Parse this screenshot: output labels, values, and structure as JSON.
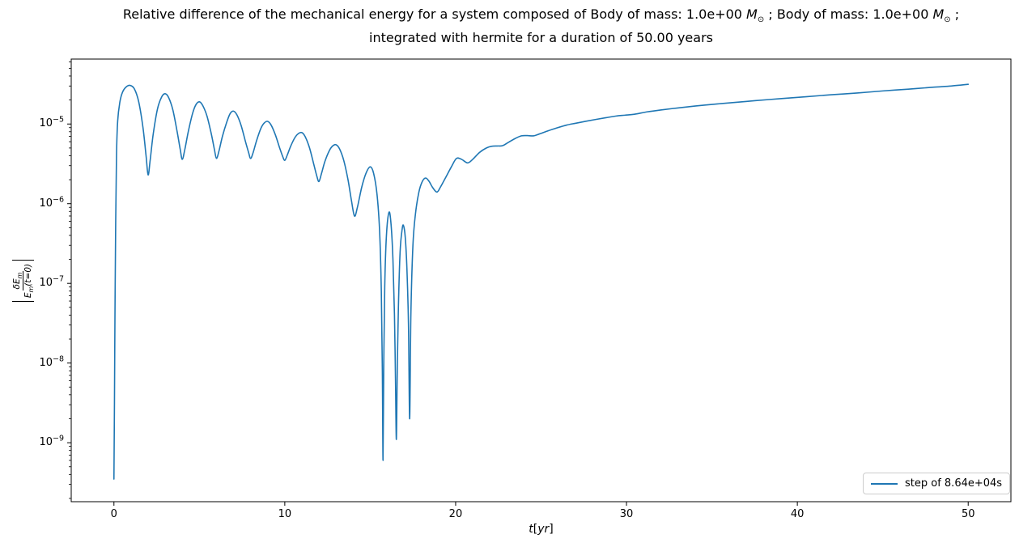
{
  "title": {
    "line1_a": "Relative difference of the mechanical energy for a system composed of Body of mass: 1.0e+00 ",
    "msun": "M",
    "msun_sub": "⊙",
    "line1_b": " ; Body of mass: 1.0e+00 ",
    "line1_c": " ;",
    "line2": "integrated with hermite for a duration of 50.00 years"
  },
  "xlabel": {
    "var": "t",
    "open": "[",
    "unit": "yr",
    "close": "]"
  },
  "ylabel": {
    "num_main": "δE",
    "num_sub": "m",
    "den_main": "E",
    "den_sub": "m",
    "den_tail": "(t=0)"
  },
  "legend": {
    "label": "step of 8.64e+04s",
    "position": "lower right"
  },
  "colors": {
    "line": "#1f77b4",
    "axis": "#000000",
    "legend_border": "#cccccc"
  },
  "chart_data": {
    "type": "line",
    "title": "Relative difference of the mechanical energy for a system composed of Body of mass: 1.0e+00 M⊙ ; Body of mass: 1.0e+00 M⊙ ; integrated with hermite for a duration of 50.00 years",
    "xlabel": "t[yr]",
    "ylabel": "|δEm/Em(t=0)|",
    "grid": false,
    "legend_position": "lower right",
    "x_axis": {
      "scale": "linear",
      "min": -2.5,
      "max": 52.5,
      "ticks": [
        0,
        10,
        20,
        30,
        40,
        50
      ]
    },
    "y_axis": {
      "scale": "log",
      "min_exp": -9.74,
      "max_exp": -4.185,
      "tick_exponents": [
        -5,
        -6,
        -7,
        -8,
        -9
      ]
    },
    "series": [
      {
        "name": "step of 8.64e+04s",
        "color": "#1f77b4",
        "points": [
          [
            0.0,
            3.5e-10
          ],
          [
            0.03,
            3e-09
          ],
          [
            0.06,
            4e-08
          ],
          [
            0.1,
            5e-07
          ],
          [
            0.15,
            4e-06
          ],
          [
            0.22,
            1.1e-05
          ],
          [
            0.35,
            1.9e-05
          ],
          [
            0.5,
            2.5e-05
          ],
          [
            0.7,
            2.9e-05
          ],
          [
            0.95,
            3.05e-05
          ],
          [
            1.2,
            2.75e-05
          ],
          [
            1.45,
            1.9e-05
          ],
          [
            1.7,
            9e-06
          ],
          [
            1.88,
            4e-06
          ],
          [
            2.0,
            2.3e-06
          ],
          [
            2.12,
            3.5e-06
          ],
          [
            2.3,
            7.5e-06
          ],
          [
            2.55,
            1.55e-05
          ],
          [
            2.8,
            2.2e-05
          ],
          [
            3.0,
            2.4e-05
          ],
          [
            3.2,
            2.15e-05
          ],
          [
            3.45,
            1.5e-05
          ],
          [
            3.7,
            8e-06
          ],
          [
            3.88,
            4.8e-06
          ],
          [
            4.0,
            3.6e-06
          ],
          [
            4.15,
            4.8e-06
          ],
          [
            4.35,
            8e-06
          ],
          [
            4.6,
            1.35e-05
          ],
          [
            4.8,
            1.75e-05
          ],
          [
            5.0,
            1.9e-05
          ],
          [
            5.2,
            1.7e-05
          ],
          [
            5.45,
            1.25e-05
          ],
          [
            5.7,
            7.5e-06
          ],
          [
            5.88,
            4.8e-06
          ],
          [
            6.0,
            3.7e-06
          ],
          [
            6.15,
            4.6e-06
          ],
          [
            6.35,
            7e-06
          ],
          [
            6.6,
            1.05e-05
          ],
          [
            6.8,
            1.35e-05
          ],
          [
            7.0,
            1.45e-05
          ],
          [
            7.2,
            1.3e-05
          ],
          [
            7.45,
            9.5e-06
          ],
          [
            7.7,
            6e-06
          ],
          [
            7.88,
            4.4e-06
          ],
          [
            8.0,
            3.7e-06
          ],
          [
            8.15,
            4.4e-06
          ],
          [
            8.35,
            6.2e-06
          ],
          [
            8.6,
            8.8e-06
          ],
          [
            8.8,
            1.03e-05
          ],
          [
            9.0,
            1.08e-05
          ],
          [
            9.2,
            9.7e-06
          ],
          [
            9.45,
            7.3e-06
          ],
          [
            9.7,
            5e-06
          ],
          [
            9.88,
            3.9e-06
          ],
          [
            10.0,
            3.5e-06
          ],
          [
            10.15,
            4.1e-06
          ],
          [
            10.35,
            5.3e-06
          ],
          [
            10.6,
            6.8e-06
          ],
          [
            10.8,
            7.6e-06
          ],
          [
            11.0,
            7.8e-06
          ],
          [
            11.2,
            6.9e-06
          ],
          [
            11.45,
            5e-06
          ],
          [
            11.7,
            3.1e-06
          ],
          [
            11.88,
            2.2e-06
          ],
          [
            12.0,
            1.9e-06
          ],
          [
            12.15,
            2.4e-06
          ],
          [
            12.35,
            3.4e-06
          ],
          [
            12.6,
            4.6e-06
          ],
          [
            12.8,
            5.3e-06
          ],
          [
            13.0,
            5.5e-06
          ],
          [
            13.2,
            4.9e-06
          ],
          [
            13.45,
            3.5e-06
          ],
          [
            13.7,
            2e-06
          ],
          [
            13.9,
            1.1e-06
          ],
          [
            14.08,
            7e-07
          ],
          [
            14.25,
            9e-07
          ],
          [
            14.5,
            1.6e-06
          ],
          [
            14.75,
            2.4e-06
          ],
          [
            15.0,
            2.9e-06
          ],
          [
            15.2,
            2.4e-06
          ],
          [
            15.4,
            1.3e-06
          ],
          [
            15.55,
            4.5e-07
          ],
          [
            15.65,
            8e-08
          ],
          [
            15.71,
            8e-09
          ],
          [
            15.75,
            6e-10
          ],
          [
            15.79,
            8e-09
          ],
          [
            15.85,
            9e-08
          ],
          [
            15.95,
            4e-07
          ],
          [
            16.1,
            7.8e-07
          ],
          [
            16.22,
            5.5e-07
          ],
          [
            16.33,
            2e-07
          ],
          [
            16.42,
            4e-08
          ],
          [
            16.48,
            6e-09
          ],
          [
            16.53,
            1.1e-09
          ],
          [
            16.58,
            7e-09
          ],
          [
            16.65,
            5e-08
          ],
          [
            16.75,
            2.5e-07
          ],
          [
            16.87,
            4.8e-07
          ],
          [
            16.95,
            5.3e-07
          ],
          [
            17.05,
            3.8e-07
          ],
          [
            17.15,
            1.5e-07
          ],
          [
            17.24,
            3e-08
          ],
          [
            17.31,
            2e-09
          ],
          [
            17.38,
            4e-08
          ],
          [
            17.5,
            3e-07
          ],
          [
            17.65,
            7.5e-07
          ],
          [
            17.85,
            1.4e-06
          ],
          [
            18.05,
            1.9e-06
          ],
          [
            18.25,
            2.1e-06
          ],
          [
            18.45,
            1.9e-06
          ],
          [
            18.65,
            1.6e-06
          ],
          [
            18.9,
            1.4e-06
          ],
          [
            19.1,
            1.6e-06
          ],
          [
            19.4,
            2.1e-06
          ],
          [
            19.75,
            2.9e-06
          ],
          [
            20.05,
            3.7e-06
          ],
          [
            20.35,
            3.6e-06
          ],
          [
            20.7,
            3.25e-06
          ],
          [
            21.0,
            3.6e-06
          ],
          [
            21.4,
            4.4e-06
          ],
          [
            21.8,
            5e-06
          ],
          [
            22.1,
            5.25e-06
          ],
          [
            22.45,
            5.3e-06
          ],
          [
            22.75,
            5.35e-06
          ],
          [
            23.1,
            5.9e-06
          ],
          [
            23.5,
            6.6e-06
          ],
          [
            23.85,
            7.1e-06
          ],
          [
            24.2,
            7.15e-06
          ],
          [
            24.55,
            7.1e-06
          ],
          [
            24.9,
            7.5e-06
          ],
          [
            25.4,
            8.2e-06
          ],
          [
            25.9,
            8.9e-06
          ],
          [
            26.5,
            9.7e-06
          ],
          [
            27.0,
            1.02e-05
          ],
          [
            27.6,
            1.08e-05
          ],
          [
            28.2,
            1.14e-05
          ],
          [
            28.8,
            1.2e-05
          ],
          [
            29.4,
            1.26e-05
          ],
          [
            29.9,
            1.29e-05
          ],
          [
            30.5,
            1.33e-05
          ],
          [
            31.2,
            1.42e-05
          ],
          [
            32.0,
            1.5e-05
          ],
          [
            33.0,
            1.59e-05
          ],
          [
            34.0,
            1.68e-05
          ],
          [
            35.0,
            1.76e-05
          ],
          [
            36.0,
            1.84e-05
          ],
          [
            37.5,
            1.96e-05
          ],
          [
            39.0,
            2.08e-05
          ],
          [
            40.5,
            2.2e-05
          ],
          [
            42.0,
            2.33e-05
          ],
          [
            43.5,
            2.45e-05
          ],
          [
            45.0,
            2.6e-05
          ],
          [
            46.5,
            2.74e-05
          ],
          [
            48.0,
            2.9e-05
          ],
          [
            49.0,
            3e-05
          ],
          [
            50.0,
            3.15e-05
          ]
        ]
      }
    ]
  }
}
